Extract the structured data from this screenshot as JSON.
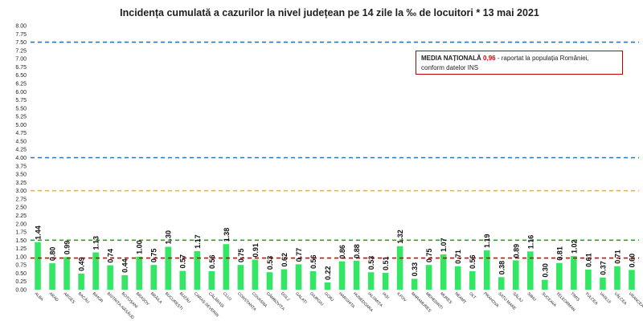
{
  "chart_data": {
    "type": "bar",
    "title": "Incidența cumulată a cazurilor la nivel județean pe 14 zile la ‰ de locuitori *  13 mai 2021",
    "xlabel": "",
    "ylabel": "",
    "ylim": [
      0,
      8
    ],
    "ytick_step": 0.25,
    "grid": false,
    "bar_color": "#33e663",
    "categories": [
      "ALBA",
      "ARAD",
      "ARGEȘ",
      "BACĂU",
      "BIHOR",
      "BISTRIȚA-NĂSĂUD",
      "BOTOȘANI",
      "BRAȘOV",
      "BRĂILA",
      "BUCUREȘTI",
      "BUZĂU",
      "CARAȘ-SEVERIN",
      "CĂLĂRAȘI",
      "CLUJ",
      "CONSTANȚA",
      "COVASNA",
      "DÂMBOVIȚA",
      "DOLJ",
      "GALAȚI",
      "GIURGIU",
      "GORJ",
      "HARGHITA",
      "HUNEDOARA",
      "IALOMIȚA",
      "IAȘI",
      "ILFOV",
      "MARAMUREȘ",
      "MEHEDINȚI",
      "MUREȘ",
      "NEAMȚ",
      "OLT",
      "PRAHOVA",
      "SATU MARE",
      "SĂLAJ",
      "SIBIU",
      "SUCEAVA",
      "TELEORMAN",
      "TIMIȘ",
      "TULCEA",
      "VASLUI",
      "VÂLCEA",
      "VRANCEA"
    ],
    "values": [
      1.44,
      0.8,
      0.99,
      0.49,
      1.13,
      0.74,
      0.44,
      1.0,
      0.75,
      1.3,
      0.57,
      1.17,
      0.56,
      1.38,
      0.75,
      0.91,
      0.53,
      0.62,
      0.77,
      0.56,
      0.22,
      0.86,
      0.88,
      0.53,
      0.51,
      1.32,
      0.33,
      0.75,
      1.07,
      0.71,
      0.56,
      1.19,
      0.38,
      0.89,
      1.16,
      0.3,
      0.81,
      1.02,
      0.61,
      0.37,
      0.71,
      0.6
    ],
    "value_labels": [
      "1.44",
      "0.80",
      "0.99",
      "0.49",
      "1.13",
      "0.74",
      "0.44",
      "1.00",
      "0.75",
      "1.30",
      "0.57",
      "1.17",
      "0.56",
      "1.38",
      "0.75",
      "0.91",
      "0.53",
      "0.62",
      "0.77",
      "0.56",
      "0.22",
      "0.86",
      "0.88",
      "0.53",
      "0.51",
      "1.32",
      "0.33",
      "0.75",
      "1.07",
      "0.71",
      "0.56",
      "1.19",
      "0.38",
      "0.89",
      "1.16",
      "0.30",
      "0.81",
      "1.02",
      "0.61",
      "0.37",
      "0.71",
      "0.60"
    ],
    "reference_lines": [
      {
        "value": 7.5,
        "color": "#2e75b6",
        "style": "dashed"
      },
      {
        "value": 4.0,
        "color": "#2e75b6",
        "style": "dashed"
      },
      {
        "value": 3.0,
        "color": "#e6b800",
        "style": "dashed"
      },
      {
        "value": 1.5,
        "color": "#2ca02c",
        "style": "dashed"
      },
      {
        "value": 0.96,
        "color": "#e00000",
        "style": "dashed"
      }
    ]
  },
  "legend": {
    "title": "MEDIA NAȚIONALĂ",
    "value": "0,96",
    "text_line1": " - raportat la populația României,",
    "text_line2": "conform datelor INS"
  }
}
